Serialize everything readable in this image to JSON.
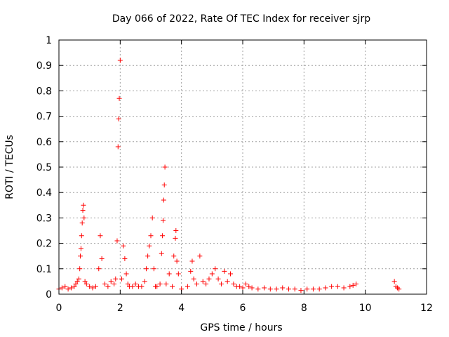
{
  "chart_data": {
    "type": "scatter",
    "title": "Day 066 of 2022, Rate Of TEC Index for receiver sjrp",
    "xlabel": "GPS time / hours",
    "ylabel": "ROTI / TECUs",
    "xlim": [
      0,
      12
    ],
    "ylim": [
      0,
      1
    ],
    "x_ticks": [
      "0",
      "2",
      "4",
      "6",
      "8",
      "10",
      "12"
    ],
    "y_ticks": [
      "0",
      "0.1",
      "0.2",
      "0.3",
      "0.4",
      "0.5",
      "0.6",
      "0.7",
      "0.8",
      "0.9",
      "1"
    ],
    "grid": true,
    "marker": "+",
    "marker_color": "#ff0000",
    "series": [
      {
        "points": [
          [
            0.0,
            0.02
          ],
          [
            0.1,
            0.025
          ],
          [
            0.2,
            0.03
          ],
          [
            0.3,
            0.02
          ],
          [
            0.4,
            0.025
          ],
          [
            0.5,
            0.03
          ],
          [
            0.55,
            0.04
          ],
          [
            0.6,
            0.05
          ],
          [
            0.65,
            0.06
          ],
          [
            0.68,
            0.1
          ],
          [
            0.7,
            0.15
          ],
          [
            0.72,
            0.18
          ],
          [
            0.74,
            0.23
          ],
          [
            0.76,
            0.28
          ],
          [
            0.78,
            0.33
          ],
          [
            0.8,
            0.35
          ],
          [
            0.82,
            0.3
          ],
          [
            0.85,
            0.05
          ],
          [
            0.9,
            0.04
          ],
          [
            1.0,
            0.03
          ],
          [
            1.1,
            0.025
          ],
          [
            1.2,
            0.03
          ],
          [
            1.3,
            0.1
          ],
          [
            1.35,
            0.23
          ],
          [
            1.4,
            0.14
          ],
          [
            1.5,
            0.04
          ],
          [
            1.6,
            0.03
          ],
          [
            1.7,
            0.05
          ],
          [
            1.8,
            0.04
          ],
          [
            1.85,
            0.06
          ],
          [
            1.9,
            0.21
          ],
          [
            1.93,
            0.58
          ],
          [
            1.95,
            0.69
          ],
          [
            1.97,
            0.77
          ],
          [
            2.0,
            0.92
          ],
          [
            2.05,
            0.06
          ],
          [
            2.1,
            0.19
          ],
          [
            2.15,
            0.14
          ],
          [
            2.2,
            0.08
          ],
          [
            2.25,
            0.04
          ],
          [
            2.3,
            0.03
          ],
          [
            2.4,
            0.03
          ],
          [
            2.5,
            0.04
          ],
          [
            2.6,
            0.03
          ],
          [
            2.7,
            0.03
          ],
          [
            2.8,
            0.05
          ],
          [
            2.85,
            0.1
          ],
          [
            2.9,
            0.15
          ],
          [
            2.95,
            0.19
          ],
          [
            3.0,
            0.23
          ],
          [
            3.05,
            0.3
          ],
          [
            3.1,
            0.1
          ],
          [
            3.15,
            0.03
          ],
          [
            3.2,
            0.03
          ],
          [
            3.3,
            0.04
          ],
          [
            3.35,
            0.16
          ],
          [
            3.38,
            0.23
          ],
          [
            3.4,
            0.29
          ],
          [
            3.42,
            0.37
          ],
          [
            3.44,
            0.43
          ],
          [
            3.46,
            0.5
          ],
          [
            3.5,
            0.04
          ],
          [
            3.6,
            0.08
          ],
          [
            3.7,
            0.03
          ],
          [
            3.75,
            0.15
          ],
          [
            3.8,
            0.22
          ],
          [
            3.82,
            0.25
          ],
          [
            3.85,
            0.13
          ],
          [
            3.9,
            0.08
          ],
          [
            4.0,
            0.02
          ],
          [
            4.2,
            0.03
          ],
          [
            4.3,
            0.09
          ],
          [
            4.35,
            0.13
          ],
          [
            4.4,
            0.06
          ],
          [
            4.5,
            0.04
          ],
          [
            4.6,
            0.15
          ],
          [
            4.7,
            0.05
          ],
          [
            4.8,
            0.04
          ],
          [
            4.9,
            0.06
          ],
          [
            5.0,
            0.08
          ],
          [
            5.1,
            0.1
          ],
          [
            5.2,
            0.06
          ],
          [
            5.3,
            0.04
          ],
          [
            5.4,
            0.09
          ],
          [
            5.5,
            0.05
          ],
          [
            5.6,
            0.08
          ],
          [
            5.7,
            0.04
          ],
          [
            5.8,
            0.03
          ],
          [
            5.9,
            0.03
          ],
          [
            6.0,
            0.025
          ],
          [
            6.1,
            0.04
          ],
          [
            6.2,
            0.03
          ],
          [
            6.3,
            0.025
          ],
          [
            6.5,
            0.02
          ],
          [
            6.7,
            0.025
          ],
          [
            6.9,
            0.02
          ],
          [
            7.1,
            0.02
          ],
          [
            7.3,
            0.025
          ],
          [
            7.5,
            0.02
          ],
          [
            7.7,
            0.02
          ],
          [
            7.9,
            0.015
          ],
          [
            8.1,
            0.02
          ],
          [
            8.3,
            0.02
          ],
          [
            8.5,
            0.02
          ],
          [
            8.7,
            0.025
          ],
          [
            8.9,
            0.03
          ],
          [
            9.1,
            0.03
          ],
          [
            9.3,
            0.025
          ],
          [
            9.5,
            0.03
          ],
          [
            9.6,
            0.035
          ],
          [
            9.7,
            0.04
          ],
          [
            10.95,
            0.05
          ],
          [
            11.0,
            0.03
          ],
          [
            11.05,
            0.025
          ],
          [
            11.1,
            0.02
          ]
        ]
      }
    ]
  }
}
